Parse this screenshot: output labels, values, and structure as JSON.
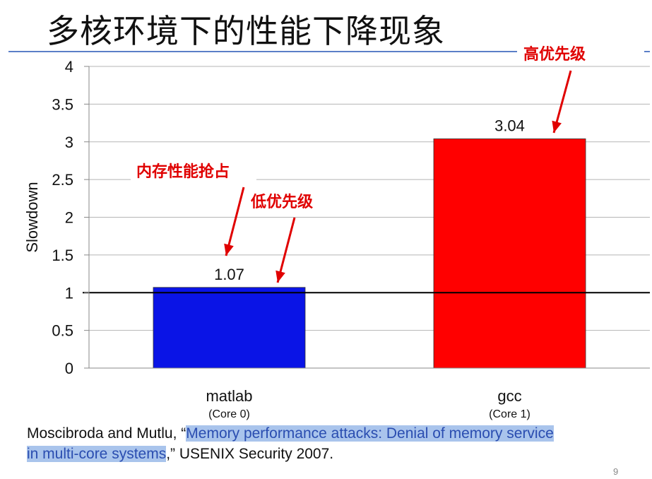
{
  "slide": {
    "title": "多核环境下的性能下降现象",
    "citation": {
      "authors": "Moscibroda and Mutlu, “",
      "paper_title_part1": "Memory performance attacks: Denial of memory service",
      "paper_title_part2": "in multi-core systems",
      "venue": ",” USENIX Security 2007."
    },
    "page_number": "9"
  },
  "chart_data": {
    "type": "bar",
    "categories": [
      "matlab",
      "gcc"
    ],
    "subcategories": [
      "(Core 0)",
      "(Core 1)"
    ],
    "values": [
      1.07,
      3.04
    ],
    "value_labels": [
      "1.07",
      "3.04"
    ],
    "bar_colors": [
      "#0a14e6",
      "#ff0000"
    ],
    "ylabel": "Slowdown",
    "ylim": [
      0,
      4
    ],
    "yticks": [
      0,
      0.5,
      1,
      1.5,
      2,
      2.5,
      3,
      3.5,
      4
    ],
    "ytick_labels": [
      "0",
      "0.5",
      "1",
      "1.5",
      "2",
      "2.5",
      "3",
      "3.5",
      "4"
    ],
    "reference_line": 1,
    "grid": true,
    "annotations": [
      {
        "text": "内存性能抢占"
      },
      {
        "text": "低优先级"
      },
      {
        "text": "高优先级"
      }
    ]
  }
}
